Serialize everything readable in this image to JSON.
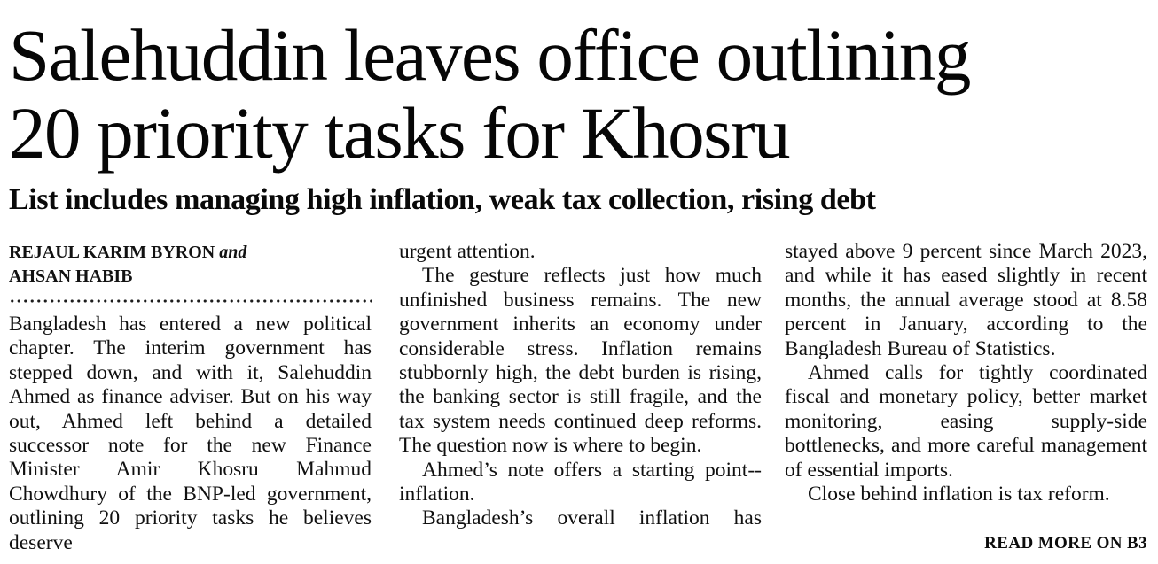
{
  "article": {
    "headline_lines": [
      "Salehuddin leaves office outlining",
      "20 priority tasks for Khosru"
    ],
    "subheadline": "List includes managing high inflation, weak tax collection, rising debt",
    "byline": {
      "author1": "REJAUL KARIM BYRON",
      "connector": "and",
      "author2": "AHSAN HABIB"
    },
    "columns": [
      {
        "paragraphs": [
          {
            "text": "Bangladesh has entered a new political chapter. The interim government has stepped down, and with it, Salehuddin Ahmed as finance adviser. But on his way out, Ahmed left behind a detailed successor note for the new Finance Minister Amir Khosru Mahmud Chowdhury of the BNP-led government, outlining 20 priority tasks he believes deserve",
            "indent": false,
            "justify_last": true
          }
        ]
      },
      {
        "paragraphs": [
          {
            "text": "urgent attention.",
            "indent": false,
            "justify_last": false
          },
          {
            "text": "The gesture reflects just how much unfinished business remains. The new government inherits an economy under considerable stress. Inflation remains stubbornly high, the debt burden is rising, the banking sector is still fragile, and the tax system needs continued deep reforms. The question now is where to begin.",
            "indent": true,
            "justify_last": false
          },
          {
            "text": "Ahmed’s note offers a starting point-- inflation.",
            "indent": true,
            "justify_last": false
          },
          {
            "text": "Bangladesh’s overall inflation has",
            "indent": true,
            "justify_last": true
          }
        ]
      },
      {
        "paragraphs": [
          {
            "text": "stayed above 9 percent since March 2023, and while it has eased slightly in recent months, the annual average stood at 8.58 percent in January, according to the Bangladesh Bureau of Statistics.",
            "indent": false,
            "justify_last": false
          },
          {
            "text": "Ahmed calls for tightly coordinated fiscal and monetary policy, better market monitoring, easing supply-side bottlenecks, and more careful management of essential imports.",
            "indent": true,
            "justify_last": false
          },
          {
            "text": "Close behind inflation is tax reform.",
            "indent": true,
            "justify_last": false
          }
        ]
      }
    ],
    "read_more": "READ MORE ON B3"
  }
}
